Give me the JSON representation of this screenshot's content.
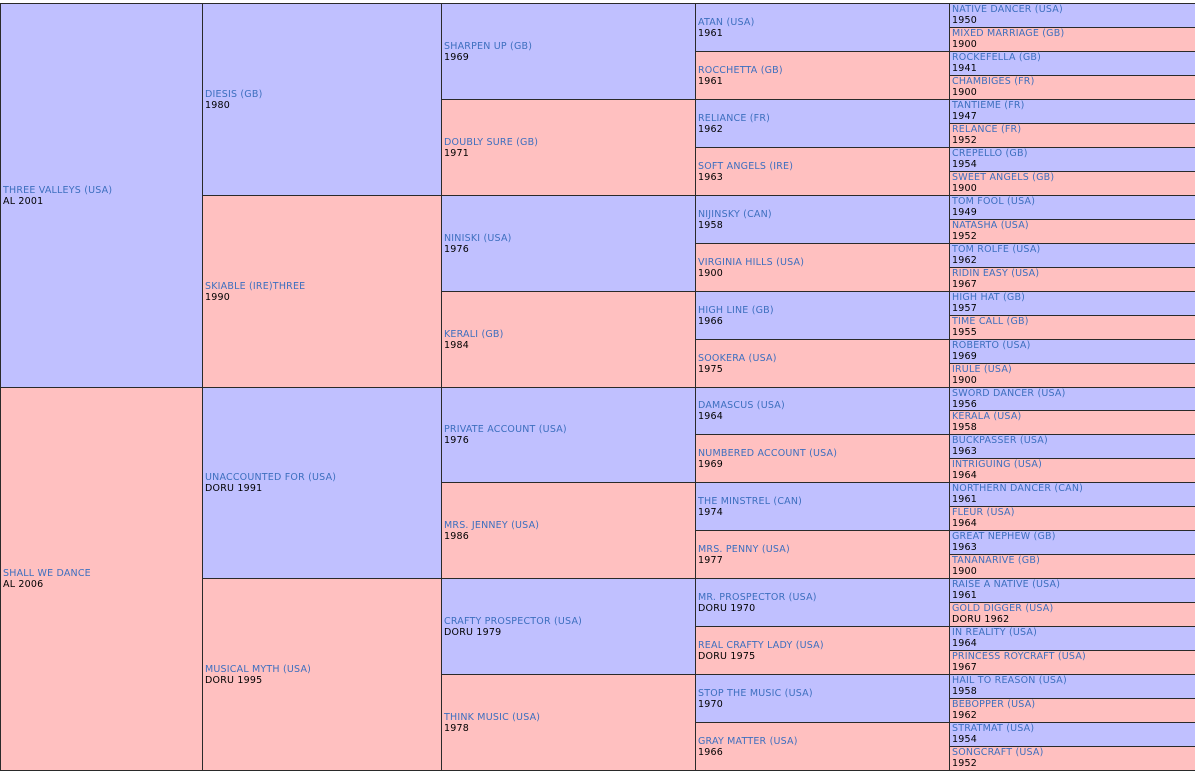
{
  "colors": {
    "sire_bg": "#c0c0ff",
    "dam_bg": "#ffc0c0",
    "name_link": "#3d6fbf",
    "year_text": "#000000"
  },
  "pedigree": [
    [
      {
        "name": "THREE VALLEYS (USA)",
        "year": "AL 2001",
        "sex": "sire"
      },
      {
        "name": "SHALL WE DANCE",
        "year": "AL 2006",
        "sex": "dam"
      }
    ],
    [
      {
        "name": "DIESIS (GB)",
        "year": "1980",
        "sex": "sire"
      },
      {
        "name": "SKIABLE (IRE)THREE",
        "year": "1990",
        "sex": "dam"
      },
      {
        "name": "UNACCOUNTED FOR (USA)",
        "year": "DORU 1991",
        "sex": "sire"
      },
      {
        "name": "MUSICAL MYTH (USA)",
        "year": "DORU 1995",
        "sex": "dam"
      }
    ],
    [
      {
        "name": "SHARPEN UP (GB)",
        "year": "1969",
        "sex": "sire"
      },
      {
        "name": "DOUBLY SURE (GB)",
        "year": "1971",
        "sex": "dam"
      },
      {
        "name": "NINISKI (USA)",
        "year": "1976",
        "sex": "sire"
      },
      {
        "name": "KERALI (GB)",
        "year": "1984",
        "sex": "dam"
      },
      {
        "name": "PRIVATE ACCOUNT (USA)",
        "year": "1976",
        "sex": "sire"
      },
      {
        "name": "MRS. JENNEY (USA)",
        "year": "1986",
        "sex": "dam"
      },
      {
        "name": "CRAFTY PROSPECTOR (USA)",
        "year": "DORU 1979",
        "sex": "sire"
      },
      {
        "name": "THINK MUSIC (USA)",
        "year": "1978",
        "sex": "dam"
      }
    ],
    [
      {
        "name": "ATAN (USA)",
        "year": "1961",
        "sex": "sire"
      },
      {
        "name": "ROCCHETTA (GB)",
        "year": "1961",
        "sex": "dam"
      },
      {
        "name": "RELIANCE (FR)",
        "year": "1962",
        "sex": "sire"
      },
      {
        "name": "SOFT ANGELS (IRE)",
        "year": "1963",
        "sex": "dam"
      },
      {
        "name": "NIJINSKY (CAN)",
        "year": "1958",
        "sex": "sire"
      },
      {
        "name": "VIRGINIA HILLS (USA)",
        "year": "1900",
        "sex": "dam"
      },
      {
        "name": "HIGH LINE (GB)",
        "year": "1966",
        "sex": "sire"
      },
      {
        "name": "SOOKERA (USA)",
        "year": "1975",
        "sex": "dam"
      },
      {
        "name": "DAMASCUS (USA)",
        "year": "1964",
        "sex": "sire"
      },
      {
        "name": "NUMBERED ACCOUNT (USA)",
        "year": "1969",
        "sex": "dam"
      },
      {
        "name": "THE MINSTREL (CAN)",
        "year": "1974",
        "sex": "sire"
      },
      {
        "name": "MRS. PENNY (USA)",
        "year": "1977",
        "sex": "dam"
      },
      {
        "name": "MR. PROSPECTOR (USA)",
        "year": "DORU 1970",
        "sex": "sire"
      },
      {
        "name": "REAL CRAFTY LADY (USA)",
        "year": "DORU 1975",
        "sex": "dam"
      },
      {
        "name": "STOP THE MUSIC (USA)",
        "year": "1970",
        "sex": "sire"
      },
      {
        "name": "GRAY MATTER (USA)",
        "year": "1966",
        "sex": "dam"
      }
    ],
    [
      {
        "name": "NATIVE DANCER (USA)",
        "year": "1950",
        "sex": "sire"
      },
      {
        "name": "MIXED MARRIAGE (GB)",
        "year": "1900",
        "sex": "dam"
      },
      {
        "name": "ROCKEFELLA (GB)",
        "year": "1941",
        "sex": "sire"
      },
      {
        "name": "CHAMBIGES (FR)",
        "year": "1900",
        "sex": "dam"
      },
      {
        "name": "TANTIEME (FR)",
        "year": "1947",
        "sex": "sire"
      },
      {
        "name": "RELANCE (FR)",
        "year": "1952",
        "sex": "dam"
      },
      {
        "name": "CREPELLO (GB)",
        "year": "1954",
        "sex": "sire"
      },
      {
        "name": "SWEET ANGELS (GB)",
        "year": "1900",
        "sex": "dam"
      },
      {
        "name": "TOM FOOL (USA)",
        "year": "1949",
        "sex": "sire"
      },
      {
        "name": "NATASHA (USA)",
        "year": "1952",
        "sex": "dam"
      },
      {
        "name": "TOM ROLFE (USA)",
        "year": "1962",
        "sex": "sire"
      },
      {
        "name": "RIDIN EASY (USA)",
        "year": "1967",
        "sex": "dam"
      },
      {
        "name": "HIGH HAT (GB)",
        "year": "1957",
        "sex": "sire"
      },
      {
        "name": "TIME CALL (GB)",
        "year": "1955",
        "sex": "dam"
      },
      {
        "name": "ROBERTO (USA)",
        "year": "1969",
        "sex": "sire"
      },
      {
        "name": "IRULE (USA)",
        "year": "1900",
        "sex": "dam"
      },
      {
        "name": "SWORD DANCER (USA)",
        "year": "1956",
        "sex": "sire"
      },
      {
        "name": "KERALA (USA)",
        "year": "1958",
        "sex": "dam"
      },
      {
        "name": "BUCKPASSER (USA)",
        "year": "1963",
        "sex": "sire"
      },
      {
        "name": "INTRIGUING (USA)",
        "year": "1964",
        "sex": "dam"
      },
      {
        "name": "NORTHERN DANCER (CAN)",
        "year": "1961",
        "sex": "sire"
      },
      {
        "name": "FLEUR (USA)",
        "year": "1964",
        "sex": "dam"
      },
      {
        "name": "GREAT NEPHEW (GB)",
        "year": "1963",
        "sex": "sire"
      },
      {
        "name": "TANANARIVE (GB)",
        "year": "1900",
        "sex": "dam"
      },
      {
        "name": "RAISE A NATIVE (USA)",
        "year": "1961",
        "sex": "sire"
      },
      {
        "name": "GOLD DIGGER (USA)",
        "year": "DORU 1962",
        "sex": "dam"
      },
      {
        "name": "IN REALITY (USA)",
        "year": "1964",
        "sex": "sire"
      },
      {
        "name": "PRINCESS ROYCRAFT (USA)",
        "year": "1967",
        "sex": "dam"
      },
      {
        "name": "HAIL TO REASON (USA)",
        "year": "1958",
        "sex": "sire"
      },
      {
        "name": "BEBOPPER (USA)",
        "year": "1962",
        "sex": "dam"
      },
      {
        "name": "STRATMAT (USA)",
        "year": "1954",
        "sex": "sire"
      },
      {
        "name": "SONGCRAFT (USA)",
        "year": "1952",
        "sex": "dam"
      }
    ]
  ]
}
